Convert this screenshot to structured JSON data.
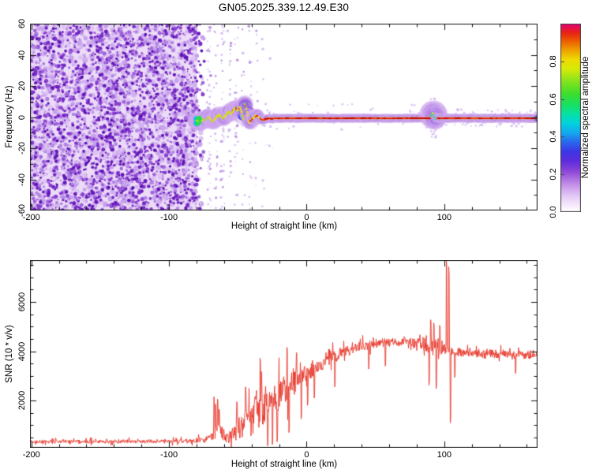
{
  "figure": {
    "title": "GN05.2025.339.12.49.E30",
    "background": "#ffffff",
    "frame_color": "#111111"
  },
  "chart_data": [
    {
      "type": "heatmap",
      "title": "GN05.2025.339.12.49.E30",
      "xlabel": "Height of straight line (km)",
      "ylabel": "Frequency (Hz)",
      "xlim": [
        -201,
        167.8
      ],
      "ylim": [
        -60,
        60
      ],
      "xticks": [
        -200,
        -100,
        0,
        100
      ],
      "xtick_labels": [
        "-200",
        "-100",
        "0",
        "100"
      ],
      "x_minor_step": 20,
      "yticks": [
        60,
        40,
        20,
        0,
        -20,
        -40,
        -60
      ],
      "ytick_labels": [
        "60",
        "40",
        "20",
        "0",
        "-20",
        "-40",
        "-60"
      ],
      "y_minor_step": 10,
      "grid": false,
      "colorbar": {
        "label": "Normalized spectral amplitude",
        "ticks": [
          0.0,
          0.2,
          0.4,
          0.6,
          0.8
        ],
        "tick_labels": [
          "0.0",
          "0.2",
          "0.4",
          "0.6",
          "0.8"
        ],
        "range": [
          0,
          1
        ],
        "stops": [
          [
            0.0,
            "#ffffff"
          ],
          [
            0.03,
            "#f7eefc"
          ],
          [
            0.08,
            "#e6cdf7"
          ],
          [
            0.13,
            "#cda0ec"
          ],
          [
            0.18,
            "#ab6ce0"
          ],
          [
            0.22,
            "#8844d6"
          ],
          [
            0.27,
            "#5f2cdc"
          ],
          [
            0.32,
            "#3d36e6"
          ],
          [
            0.37,
            "#2a66ec"
          ],
          [
            0.42,
            "#14a8ee"
          ],
          [
            0.47,
            "#03d2de"
          ],
          [
            0.52,
            "#06e2a6"
          ],
          [
            0.57,
            "#18e060"
          ],
          [
            0.63,
            "#40de2c"
          ],
          [
            0.7,
            "#8ce41c"
          ],
          [
            0.76,
            "#d8ea08"
          ],
          [
            0.81,
            "#eeda00"
          ],
          [
            0.86,
            "#eea000"
          ],
          [
            0.91,
            "#ec5a00"
          ],
          [
            0.95,
            "#e82414"
          ],
          [
            0.98,
            "#e60e4e"
          ],
          [
            1.0,
            "#e10080"
          ]
        ]
      },
      "noise_region": {
        "km_start": -201,
        "km_end": -79.5,
        "base_color": "#ecdcf8",
        "light_colors": [
          "#ddc2f3",
          "#d2b1ef",
          "#c8a2ec"
        ],
        "dark_colors": [
          "#b285e3",
          "#9e63da",
          "#8a41d0",
          "#762bc6",
          "#6518b8"
        ],
        "extra_dark": "#5a0fb0"
      },
      "streak_columns": [
        [
          -71,
          55
        ],
        [
          -66,
          30
        ],
        [
          -61,
          40
        ],
        [
          -56,
          25
        ],
        [
          -51,
          28
        ],
        [
          -46,
          16
        ],
        [
          -41,
          18
        ],
        [
          -36,
          10
        ],
        [
          -31,
          8
        ],
        [
          -26,
          6
        ]
      ],
      "signal": {
        "start_km": -82,
        "wavy_end_km": -34,
        "hole_km": [
          -46.45,
          -45.55
        ],
        "disturbance": {
          "km": 92.3,
          "sigma_km": 1.25,
          "outer_boost": 2.3,
          "inner_boost": 1.9
        },
        "tail_fuzz_start_km": 95,
        "trace": [
          [
            -82,
            -1.5
          ],
          [
            -80.5,
            -3
          ],
          [
            -79,
            -2
          ],
          [
            -77.5,
            -4
          ],
          [
            -76,
            -2.5
          ],
          [
            -74.5,
            -1
          ],
          [
            -73,
            -2
          ],
          [
            -71.5,
            0.5
          ],
          [
            -70,
            -1
          ],
          [
            -68.5,
            -3
          ],
          [
            -67,
            -2
          ],
          [
            -65.5,
            0
          ],
          [
            -64,
            1.5
          ],
          [
            -62.5,
            0.5
          ],
          [
            -61,
            -1
          ],
          [
            -59.5,
            0
          ],
          [
            -58,
            2
          ],
          [
            -56.5,
            3.5
          ],
          [
            -55,
            2
          ],
          [
            -53.5,
            4
          ],
          [
            -52,
            6
          ],
          [
            -50,
            4
          ],
          [
            -48.5,
            6
          ],
          [
            -47,
            3
          ],
          [
            -46,
            -1
          ],
          [
            -45.2,
            9
          ],
          [
            -44.2,
            7
          ],
          [
            -43.2,
            3
          ],
          [
            -42.4,
            -1
          ],
          [
            -41.6,
            -3.5
          ],
          [
            -40.5,
            -2
          ],
          [
            -39,
            -1
          ],
          [
            -37.5,
            0.5
          ],
          [
            -36,
            1
          ],
          [
            -34.5,
            -0.5
          ],
          [
            -33,
            -1.5
          ],
          [
            -31,
            -2
          ],
          [
            -29,
            -1
          ],
          [
            -27,
            -0.8
          ],
          [
            -25,
            -1.2
          ],
          [
            -23,
            -0.6
          ],
          [
            -20,
            -0.9
          ],
          [
            -15,
            -0.7
          ],
          [
            -10,
            -0.8
          ],
          [
            0,
            -0.7
          ],
          [
            20,
            -0.8
          ],
          [
            40,
            -0.7
          ],
          [
            60,
            -0.8
          ],
          [
            80,
            -0.7
          ],
          [
            89,
            -0.8
          ],
          [
            90.5,
            0.5
          ],
          [
            91.5,
            2.5
          ],
          [
            92.5,
            1
          ],
          [
            93.5,
            -1.5
          ],
          [
            94.5,
            -0.5
          ],
          [
            96,
            -0.8
          ],
          [
            110,
            -0.7
          ],
          [
            130,
            -0.8
          ],
          [
            150,
            -0.7
          ],
          [
            167.8,
            -0.8
          ]
        ],
        "layers": [
          {
            "color": "#cfaaf0",
            "rw": 9.0,
            "rs": 5.2,
            "alpha": 0.5
          },
          {
            "color": "#9d62dc",
            "rw": 6.6,
            "rs": 4.0,
            "alpha": 0.9
          },
          {
            "color": "#3a2ce4",
            "rw": 5.0,
            "rs": 3.2,
            "alpha": 1
          },
          {
            "color": "#12bef0",
            "rw": 3.7,
            "rs": 2.4,
            "alpha": 1
          },
          {
            "color": "#26dc4e",
            "rw": 2.5,
            "rs": 1.75,
            "alpha": 1
          }
        ],
        "core_yellow": "#e6e400",
        "core_red": "#e81616",
        "core_dark_red": "#cb0202",
        "disturbance_core": "#17d9a8",
        "fuzz_color": "#c3a0ee"
      }
    },
    {
      "type": "line",
      "xlabel": "Height of straight line (km)",
      "ylabel": "SNR (10 * v/v)",
      "xlim": [
        -201,
        167.8
      ],
      "ylim": [
        80,
        7700
      ],
      "xticks": [
        -200,
        -100,
        0,
        100
      ],
      "xtick_labels": [
        "-200",
        "-100",
        "0",
        "100"
      ],
      "x_minor_step": 20,
      "yticks": [
        2000,
        4000,
        6000
      ],
      "ytick_labels": [
        "2000",
        "4000",
        "6000"
      ],
      "y_minor_step": 500,
      "grid": false,
      "line_color": "#e8392d",
      "envelope": [
        [
          -201,
          330,
          90
        ],
        [
          -160,
          330,
          95
        ],
        [
          -120,
          335,
          95
        ],
        [
          -95,
          345,
          105
        ],
        [
          -85,
          365,
          120
        ],
        [
          -75,
          400,
          150
        ],
        [
          -70,
          480,
          220
        ],
        [
          -67,
          820,
          520
        ],
        [
          -65,
          900,
          600
        ],
        [
          -62,
          650,
          380
        ],
        [
          -59,
          500,
          300
        ],
        [
          -56,
          520,
          330
        ],
        [
          -53,
          640,
          420
        ],
        [
          -50,
          850,
          550
        ],
        [
          -47,
          1050,
          650
        ],
        [
          -44,
          1250,
          750
        ],
        [
          -41,
          1450,
          850
        ],
        [
          -38,
          1600,
          900
        ],
        [
          -35,
          1700,
          950
        ],
        [
          -32,
          1750,
          1000
        ],
        [
          -29,
          1800,
          1000
        ],
        [
          -26,
          1950,
          950
        ],
        [
          -23,
          2100,
          900
        ],
        [
          -20,
          2250,
          850
        ],
        [
          -17,
          2400,
          800
        ],
        [
          -14,
          2550,
          800
        ],
        [
          -11,
          2700,
          750
        ],
        [
          -8,
          2850,
          700
        ],
        [
          -5,
          2980,
          640
        ],
        [
          -2,
          3080,
          580
        ],
        [
          1,
          3180,
          540
        ],
        [
          4,
          3280,
          500
        ],
        [
          8,
          3420,
          460
        ],
        [
          12,
          3550,
          420
        ],
        [
          16,
          3680,
          380
        ],
        [
          20,
          3790,
          340
        ],
        [
          25,
          3920,
          300
        ],
        [
          30,
          4030,
          280
        ],
        [
          35,
          4120,
          260
        ],
        [
          40,
          4190,
          250
        ],
        [
          45,
          4240,
          250
        ],
        [
          50,
          4290,
          245
        ],
        [
          55,
          4330,
          240
        ],
        [
          60,
          4360,
          240
        ],
        [
          65,
          4380,
          235
        ],
        [
          70,
          4390,
          235
        ],
        [
          75,
          4380,
          245
        ],
        [
          80,
          4350,
          265
        ],
        [
          84,
          4320,
          300
        ],
        [
          87,
          4280,
          380
        ],
        [
          90,
          4250,
          450
        ],
        [
          93,
          4220,
          470
        ],
        [
          96,
          4180,
          420
        ],
        [
          98,
          4140,
          350
        ],
        [
          100,
          4100,
          300
        ],
        [
          102,
          4050,
          280
        ],
        [
          105,
          3980,
          260
        ],
        [
          108,
          3960,
          240
        ],
        [
          112,
          3950,
          230
        ],
        [
          120,
          3940,
          220
        ],
        [
          128,
          3920,
          215
        ],
        [
          136,
          3900,
          210
        ],
        [
          144,
          3880,
          210
        ],
        [
          152,
          3860,
          215
        ],
        [
          160,
          3840,
          225
        ],
        [
          167.8,
          3830,
          235
        ]
      ],
      "spikes": [
        [
          -67.4,
          2150
        ],
        [
          -66.3,
          1850
        ],
        [
          -64.9,
          2060
        ],
        [
          -63.7,
          1650
        ],
        [
          -50.8,
          1950
        ],
        [
          -44.5,
          2550
        ],
        [
          -33.9,
          3720
        ],
        [
          -33.0,
          3180
        ],
        [
          -28.4,
          160
        ],
        [
          -25.0,
          210
        ],
        [
          -21.6,
          320
        ],
        [
          -14.2,
          4160
        ],
        [
          -12.8,
          700
        ],
        [
          -7.4,
          3950
        ],
        [
          -3.9,
          1250
        ],
        [
          0.6,
          1800
        ],
        [
          5.4,
          2100
        ],
        [
          20.3,
          2550
        ],
        [
          45.2,
          3280
        ],
        [
          57.1,
          3400
        ],
        [
          88.8,
          2620
        ],
        [
          90.2,
          5280
        ],
        [
          92.4,
          5150
        ],
        [
          94.0,
          2480
        ],
        [
          96.8,
          5050
        ],
        [
          101.6,
          7690
        ],
        [
          102.5,
          4100
        ],
        [
          103.2,
          7430
        ],
        [
          104.3,
          1090
        ],
        [
          107.6,
          2940
        ],
        [
          151.8,
          3100
        ]
      ]
    }
  ]
}
